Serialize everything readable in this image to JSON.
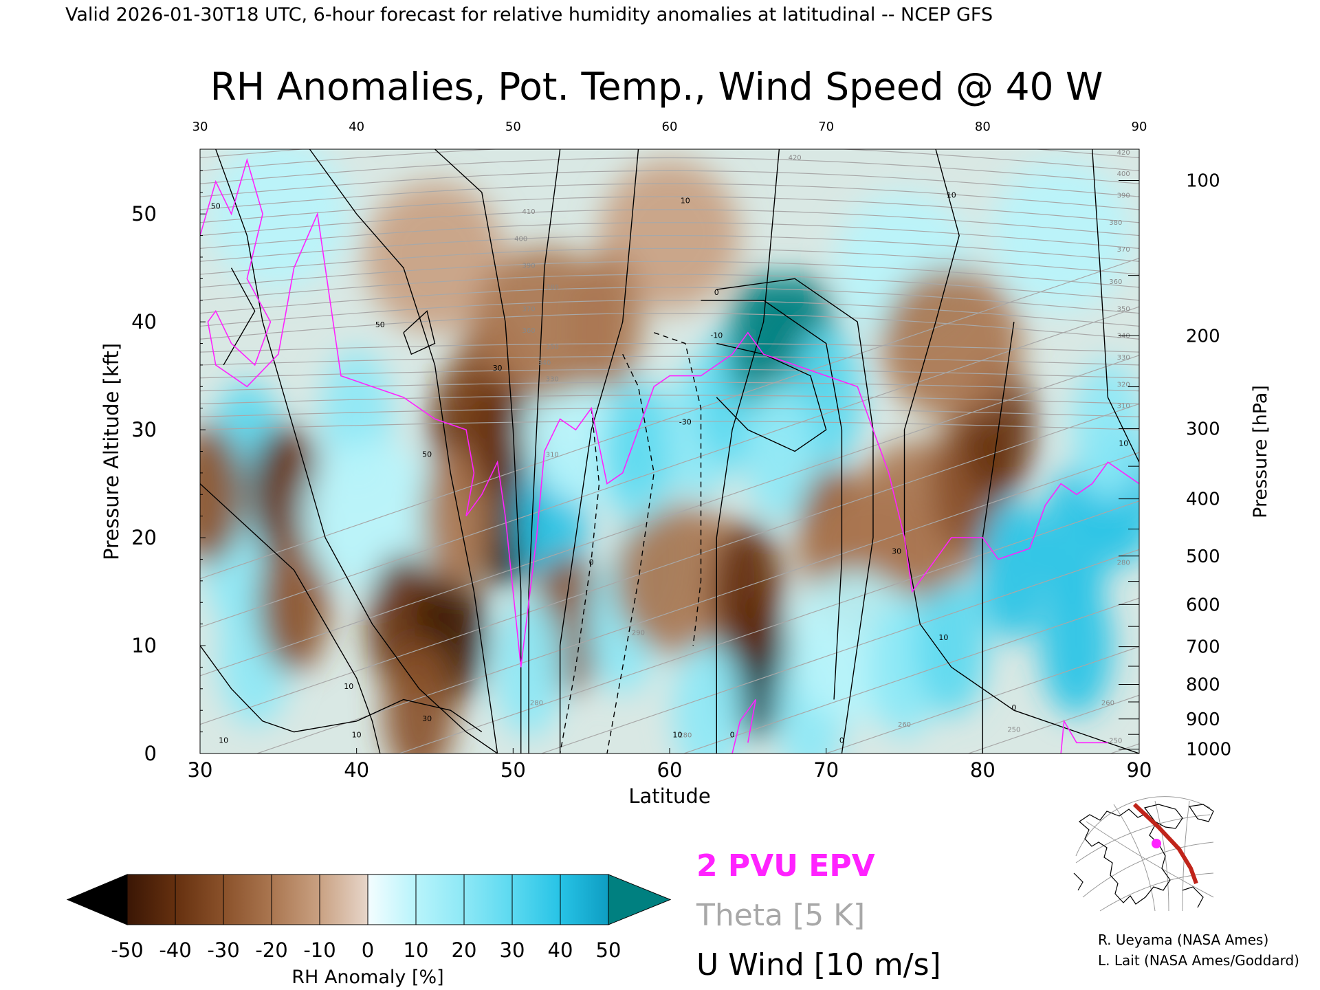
{
  "header": "Valid 2026-01-30T18 UTC, 6-hour forecast for relative humidity anomalies at latitudinal -- NCEP GFS",
  "chart_data": {
    "type": "heatmap",
    "title": "RH Anomalies, Pot. Temp., Wind Speed @ 40 W",
    "xlabel": "Latitude",
    "ylabel": "Pressure Altitude [kft]",
    "y2label": "Pressure [hPa]",
    "xlim": [
      30,
      90
    ],
    "ylim": [
      0,
      56
    ],
    "x_ticks": [
      30,
      40,
      50,
      60,
      70,
      80,
      90
    ],
    "y_ticks": [
      0,
      10,
      20,
      30,
      40,
      50
    ],
    "pressure_ticks": [
      {
        "hPa": 100,
        "kft": 53.1
      },
      {
        "hPa": 200,
        "kft": 38.7
      },
      {
        "hPa": 300,
        "kft": 30.1
      },
      {
        "hPa": 400,
        "kft": 23.6
      },
      {
        "hPa": 500,
        "kft": 18.3
      },
      {
        "hPa": 600,
        "kft": 13.8
      },
      {
        "hPa": 700,
        "kft": 9.9
      },
      {
        "hPa": 800,
        "kft": 6.4
      },
      {
        "hPa": 900,
        "kft": 3.2
      },
      {
        "hPa": 1000,
        "kft": 0.4
      }
    ],
    "rh_anomaly_blobs": [
      {
        "lat": 33,
        "kft": 28,
        "value": 30
      },
      {
        "lat": 32.5,
        "kft": 18,
        "value": 25
      },
      {
        "lat": 33.5,
        "kft": 9,
        "value": 20
      },
      {
        "lat": 35.5,
        "kft": 24,
        "value": -38
      },
      {
        "lat": 36,
        "kft": 14,
        "value": -30
      },
      {
        "lat": 30.5,
        "kft": 24,
        "value": -30
      },
      {
        "lat": 40,
        "kft": 31,
        "value": 25
      },
      {
        "lat": 41,
        "kft": 22,
        "value": 15
      },
      {
        "lat": 43,
        "kft": 12,
        "value": -35
      },
      {
        "lat": 46,
        "kft": 11,
        "value": -55
      },
      {
        "lat": 44,
        "kft": 4,
        "value": -25
      },
      {
        "lat": 47,
        "kft": 30,
        "value": -35
      },
      {
        "lat": 48.5,
        "kft": 34,
        "value": -25
      },
      {
        "lat": 49.5,
        "kft": 22,
        "value": -60
      },
      {
        "lat": 46.5,
        "kft": 22,
        "value": -20
      },
      {
        "lat": 49.5,
        "kft": 30,
        "value": -40
      },
      {
        "lat": 52.5,
        "kft": 22,
        "value": 42
      },
      {
        "lat": 53.5,
        "kft": 12,
        "value": -30
      },
      {
        "lat": 51,
        "kft": 8,
        "value": 25
      },
      {
        "lat": 55,
        "kft": 30,
        "value": 15
      },
      {
        "lat": 58,
        "kft": 28,
        "value": 30
      },
      {
        "lat": 57,
        "kft": 12,
        "value": 20
      },
      {
        "lat": 59,
        "kft": 18,
        "value": 25
      },
      {
        "lat": 62,
        "kft": 30,
        "value": 20
      },
      {
        "lat": 61,
        "kft": 16,
        "value": -15
      },
      {
        "lat": 64,
        "kft": 33,
        "value": 30
      },
      {
        "lat": 66,
        "kft": 38,
        "value": 50
      },
      {
        "lat": 68.5,
        "kft": 38,
        "value": 52
      },
      {
        "lat": 70,
        "kft": 33,
        "value": 30
      },
      {
        "lat": 67,
        "kft": 28,
        "value": 20
      },
      {
        "lat": 65.5,
        "kft": 8,
        "value": -60
      },
      {
        "lat": 65,
        "kft": 15,
        "value": -35
      },
      {
        "lat": 62.5,
        "kft": 4,
        "value": 20
      },
      {
        "lat": 69,
        "kft": 4,
        "value": 25
      },
      {
        "lat": 70.5,
        "kft": 20,
        "value": -25
      },
      {
        "lat": 73,
        "kft": 18,
        "value": -15
      },
      {
        "lat": 72,
        "kft": 10,
        "value": 15
      },
      {
        "lat": 75,
        "kft": 8,
        "value": 20
      },
      {
        "lat": 78,
        "kft": 10,
        "value": 30
      },
      {
        "lat": 76,
        "kft": 22,
        "value": -15
      },
      {
        "lat": 79,
        "kft": 25,
        "value": -30
      },
      {
        "lat": 81,
        "kft": 30,
        "value": -40
      },
      {
        "lat": 82,
        "kft": 17,
        "value": 35
      },
      {
        "lat": 86,
        "kft": 20,
        "value": 40
      },
      {
        "lat": 89,
        "kft": 24,
        "value": 42
      },
      {
        "lat": 86,
        "kft": 10,
        "value": 35
      },
      {
        "lat": 88,
        "kft": 30,
        "value": 20
      },
      {
        "lat": 60,
        "kft": 48,
        "value": -12
      },
      {
        "lat": 45,
        "kft": 46,
        "value": -14
      },
      {
        "lat": 35,
        "kft": 50,
        "value": 6
      },
      {
        "lat": 85,
        "kft": 48,
        "value": 6
      },
      {
        "lat": 75,
        "kft": 45,
        "value": 8
      },
      {
        "lat": 78,
        "kft": 38,
        "value": -18
      },
      {
        "lat": 56,
        "kft": 40,
        "value": -22
      },
      {
        "lat": 52,
        "kft": 40,
        "value": -15
      }
    ],
    "theta_levels": [
      250,
      255,
      260,
      265,
      270,
      275,
      280,
      285,
      290,
      295,
      300,
      305,
      310,
      315,
      320,
      325,
      330,
      335,
      340,
      345,
      350,
      355,
      360,
      365,
      370,
      375,
      380,
      385,
      390,
      395,
      400,
      405,
      410,
      415,
      420
    ],
    "theta_labels": [
      {
        "text": "420",
        "lat": 68,
        "kft": 55
      },
      {
        "text": "410",
        "lat": 51,
        "kft": 50
      },
      {
        "text": "400",
        "lat": 50.5,
        "kft": 47.5
      },
      {
        "text": "390",
        "lat": 51,
        "kft": 45
      },
      {
        "text": "380",
        "lat": 52.5,
        "kft": 43
      },
      {
        "text": "370",
        "lat": 51,
        "kft": 41
      },
      {
        "text": "360",
        "lat": 51,
        "kft": 39
      },
      {
        "text": "350",
        "lat": 52.5,
        "kft": 37.5
      },
      {
        "text": "340",
        "lat": 52,
        "kft": 36
      },
      {
        "text": "330",
        "lat": 52.5,
        "kft": 34.5
      },
      {
        "text": "310",
        "lat": 52.5,
        "kft": 27.5
      },
      {
        "text": "290",
        "lat": 58,
        "kft": 11
      },
      {
        "text": "280",
        "lat": 51.5,
        "kft": 4.5
      },
      {
        "text": "280",
        "lat": 61,
        "kft": 1.5
      },
      {
        "text": "260",
        "lat": 75,
        "kft": 2.5
      },
      {
        "text": "250",
        "lat": 82,
        "kft": 2
      },
      {
        "text": "420",
        "lat": 89,
        "kft": 55.5
      },
      {
        "text": "400",
        "lat": 89,
        "kft": 53.5
      },
      {
        "text": "390",
        "lat": 89,
        "kft": 51.5
      },
      {
        "text": "380",
        "lat": 88.5,
        "kft": 49
      },
      {
        "text": "370",
        "lat": 89,
        "kft": 46.5
      },
      {
        "text": "360",
        "lat": 88.5,
        "kft": 43.5
      },
      {
        "text": "350",
        "lat": 89,
        "kft": 41
      },
      {
        "text": "340",
        "lat": 89,
        "kft": 38.5
      },
      {
        "text": "330",
        "lat": 89,
        "kft": 36.5
      },
      {
        "text": "320",
        "lat": 89,
        "kft": 34
      },
      {
        "text": "310",
        "lat": 89,
        "kft": 32
      },
      {
        "text": "280",
        "lat": 89,
        "kft": 17.5
      },
      {
        "text": "260",
        "lat": 88,
        "kft": 4.5
      },
      {
        "text": "250",
        "lat": 88.5,
        "kft": 1
      }
    ],
    "wind_labels": [
      {
        "text": "50",
        "lat": 31,
        "kft": 50.5
      },
      {
        "text": "50",
        "lat": 41.5,
        "kft": 39.5
      },
      {
        "text": "30",
        "lat": 49,
        "kft": 35.5
      },
      {
        "text": "50",
        "lat": 44.5,
        "kft": 27.5
      },
      {
        "text": "0",
        "lat": 55,
        "kft": 17.5
      },
      {
        "text": "10",
        "lat": 39.5,
        "kft": 6
      },
      {
        "text": "10",
        "lat": 31.5,
        "kft": 1
      },
      {
        "text": "30",
        "lat": 44.5,
        "kft": 3
      },
      {
        "text": "10",
        "lat": 40,
        "kft": 1.5
      },
      {
        "text": "10",
        "lat": 61,
        "kft": 51
      },
      {
        "text": "0",
        "lat": 63,
        "kft": 42.5
      },
      {
        "text": "-10",
        "lat": 63,
        "kft": 38.5
      },
      {
        "text": "-30",
        "lat": 61,
        "kft": 30.5
      },
      {
        "text": "10",
        "lat": 60.5,
        "kft": 1.5
      },
      {
        "text": "0",
        "lat": 64,
        "kft": 1.5
      },
      {
        "text": "0",
        "lat": 71,
        "kft": 1
      },
      {
        "text": "10",
        "lat": 78,
        "kft": 51.5
      },
      {
        "text": "30",
        "lat": 74.5,
        "kft": 18.5
      },
      {
        "text": "10",
        "lat": 77.5,
        "kft": 10.5
      },
      {
        "text": "0",
        "lat": 82,
        "kft": 4
      },
      {
        "text": "10",
        "lat": 89,
        "kft": 28.5
      }
    ]
  },
  "colorbar": {
    "label": "RH Anomaly [%]",
    "ticks": [
      "-50",
      "-40",
      "-30",
      "-20",
      "-10",
      "0",
      "10",
      "20",
      "30",
      "40",
      "50"
    ],
    "colors": [
      "#000000",
      "#3a1605",
      "#65300f",
      "#8a512a",
      "#aa7650",
      "#c9a182",
      "#e7d6ca",
      "#e0fbff",
      "#b8f4fb",
      "#8de8f6",
      "#5bd9f0",
      "#27c3e6",
      "#0e9dc2",
      "#008080"
    ]
  },
  "legend": {
    "epv": "2 PVU EPV",
    "theta": "Theta [5 K]",
    "uwind": "U Wind [10 m/s]",
    "epv_color": "#ff22ff",
    "theta_color": "#a8a8a8"
  },
  "credits": {
    "line1": "R. Ueyama (NASA Ames)",
    "line2": "L. Lait (NASA Ames/Goddard)"
  },
  "inset_map": {
    "section_color": "#c0241a",
    "marker_color": "#ff22ff"
  }
}
